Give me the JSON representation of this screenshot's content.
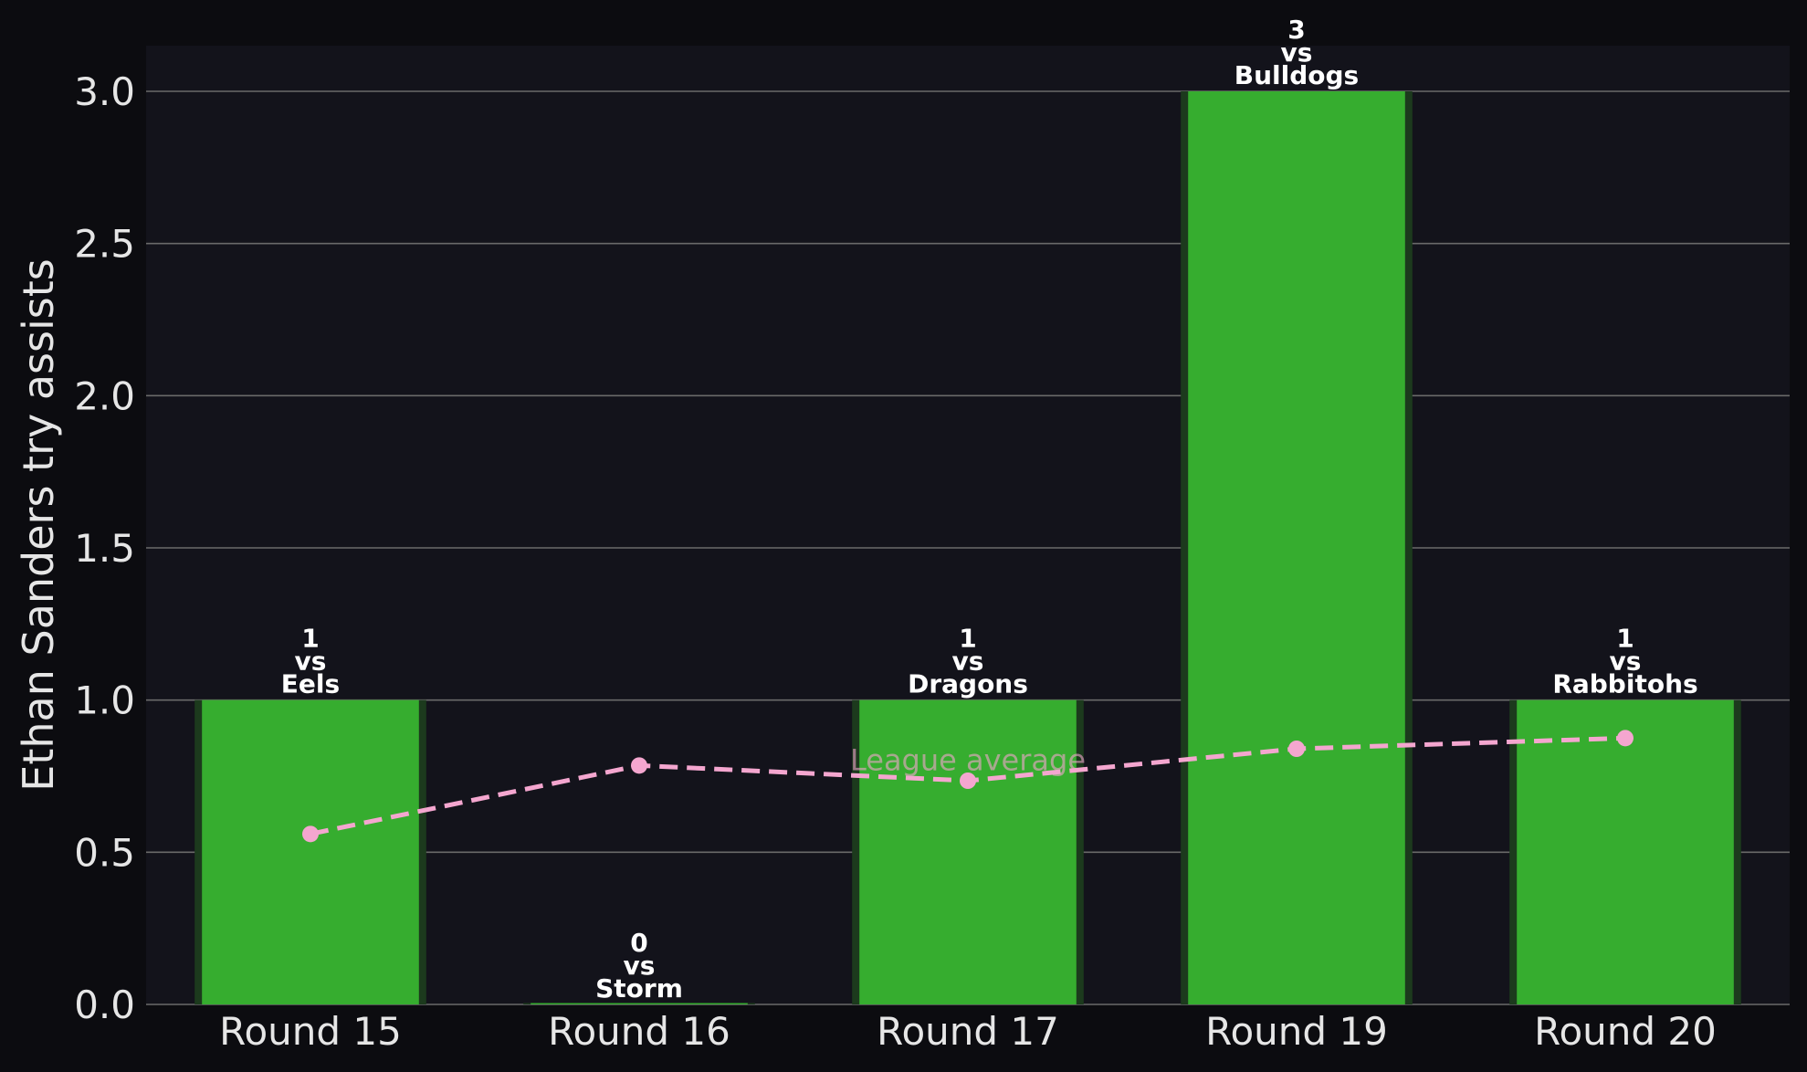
{
  "chart_data": {
    "type": "bar",
    "categories": [
      "Round 15",
      "Round 16",
      "Round 17",
      "Round 19",
      "Round 20"
    ],
    "opponents": [
      "Eels",
      "Storm",
      "Dragons",
      "Bulldogs",
      "Rabbitohs"
    ],
    "vs_text": "vs",
    "series": [
      {
        "values": [
          1,
          0,
          1,
          3,
          1
        ],
        "color": "#36ad2f"
      },
      {
        "name": "League average",
        "type": "line",
        "style": "dashed",
        "values": [
          0.56,
          0.785,
          0.735,
          0.84,
          0.875
        ],
        "color": "#f4a6cf"
      }
    ],
    "ylabel": "Ethan Sanders try assists",
    "xlabel": "",
    "title": "",
    "ylim": [
      0,
      3.15
    ],
    "yticks": [
      0.0,
      0.5,
      1.0,
      1.5,
      2.0,
      2.5,
      3.0
    ],
    "ytick_labels": [
      "0.0",
      "0.5",
      "1.0",
      "1.5",
      "2.0",
      "2.5",
      "3.0"
    ],
    "grid": "horizontal",
    "colors": {
      "background": "#0c0c10",
      "plot_background": "#13131b",
      "grid": "#6a6a6a",
      "text": "#e6e6e6"
    }
  }
}
